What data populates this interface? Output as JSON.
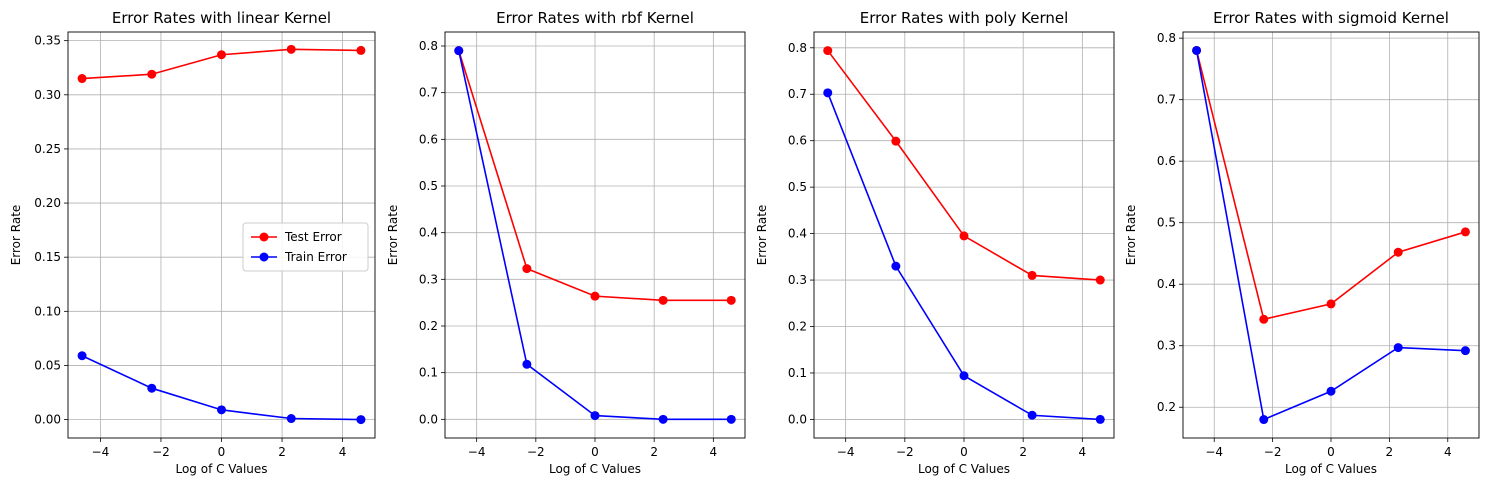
{
  "chart_data": [
    {
      "type": "line",
      "title": "Error Rates with linear Kernel",
      "xlabel": "Log of C Values",
      "ylabel": "Error Rate",
      "x": [
        -4.605,
        -2.303,
        0,
        2.303,
        4.605
      ],
      "xlim": [
        -5.07,
        5.07
      ],
      "ylim": [
        -0.017,
        0.358
      ],
      "xticks": [
        -4,
        -2,
        0,
        2,
        4
      ],
      "xtick_labels": [
        "−4",
        "−2",
        "0",
        "2",
        "4"
      ],
      "yticks": [
        0.0,
        0.05,
        0.1,
        0.15,
        0.2,
        0.25,
        0.3,
        0.35
      ],
      "ytick_labels": [
        "0.00",
        "0.05",
        "0.10",
        "0.15",
        "0.20",
        "0.25",
        "0.30",
        "0.35"
      ],
      "grid": true,
      "legend": "center-right",
      "series": [
        {
          "name": "Test Error",
          "color": "#ff0000",
          "values": [
            0.315,
            0.319,
            0.337,
            0.342,
            0.341
          ]
        },
        {
          "name": "Train Error",
          "color": "#0000ff",
          "values": [
            0.059,
            0.029,
            0.009,
            0.001,
            0.0
          ]
        }
      ]
    },
    {
      "type": "line",
      "title": "Error Rates with rbf Kernel",
      "xlabel": "Log of C Values",
      "ylabel": "Error Rate",
      "x": [
        -4.605,
        -2.303,
        0,
        2.303,
        4.605
      ],
      "xlim": [
        -5.07,
        5.07
      ],
      "ylim": [
        -0.04,
        0.83
      ],
      "xticks": [
        -4,
        -2,
        0,
        2,
        4
      ],
      "xtick_labels": [
        "−4",
        "−2",
        "0",
        "2",
        "4"
      ],
      "yticks": [
        0.0,
        0.1,
        0.2,
        0.3,
        0.4,
        0.5,
        0.6,
        0.7,
        0.8
      ],
      "ytick_labels": [
        "0.0",
        "0.1",
        "0.2",
        "0.3",
        "0.4",
        "0.5",
        "0.6",
        "0.7",
        "0.8"
      ],
      "grid": true,
      "series": [
        {
          "name": "Test Error",
          "color": "#ff0000",
          "values": [
            0.79,
            0.323,
            0.264,
            0.255,
            0.255
          ]
        },
        {
          "name": "Train Error",
          "color": "#0000ff",
          "values": [
            0.79,
            0.118,
            0.008,
            0.0,
            0.0
          ]
        }
      ]
    },
    {
      "type": "line",
      "title": "Error Rates with poly Kernel",
      "xlabel": "Log of C Values",
      "ylabel": "Error Rate",
      "x": [
        -4.605,
        -2.303,
        0,
        2.303,
        4.605
      ],
      "xlim": [
        -5.07,
        5.07
      ],
      "ylim": [
        -0.04,
        0.834
      ],
      "xticks": [
        -4,
        -2,
        0,
        2,
        4
      ],
      "xtick_labels": [
        "−4",
        "−2",
        "0",
        "2",
        "4"
      ],
      "yticks": [
        0.0,
        0.1,
        0.2,
        0.3,
        0.4,
        0.5,
        0.6,
        0.7,
        0.8
      ],
      "ytick_labels": [
        "0.0",
        "0.1",
        "0.2",
        "0.3",
        "0.4",
        "0.5",
        "0.6",
        "0.7",
        "0.8"
      ],
      "grid": true,
      "series": [
        {
          "name": "Test Error",
          "color": "#ff0000",
          "values": [
            0.794,
            0.599,
            0.395,
            0.31,
            0.3
          ]
        },
        {
          "name": "Train Error",
          "color": "#0000ff",
          "values": [
            0.703,
            0.33,
            0.094,
            0.009,
            0.0
          ]
        }
      ]
    },
    {
      "type": "line",
      "title": "Error Rates with sigmoid Kernel",
      "xlabel": "Log of C Values",
      "ylabel": "Error Rate",
      "x": [
        -4.605,
        -2.303,
        0,
        2.303,
        4.605
      ],
      "xlim": [
        -5.07,
        5.07
      ],
      "ylim": [
        0.15,
        0.81
      ],
      "xticks": [
        -4,
        -2,
        0,
        2,
        4
      ],
      "xtick_labels": [
        "−4",
        "−2",
        "0",
        "2",
        "4"
      ],
      "yticks": [
        0.2,
        0.3,
        0.4,
        0.5,
        0.6,
        0.7,
        0.8
      ],
      "ytick_labels": [
        "0.2",
        "0.3",
        "0.4",
        "0.5",
        "0.6",
        "0.7",
        "0.8"
      ],
      "grid": true,
      "series": [
        {
          "name": "Test Error",
          "color": "#ff0000",
          "values": [
            0.78,
            0.343,
            0.368,
            0.452,
            0.485
          ]
        },
        {
          "name": "Train Error",
          "color": "#0000ff",
          "values": [
            0.78,
            0.18,
            0.226,
            0.297,
            0.292
          ]
        }
      ]
    }
  ]
}
